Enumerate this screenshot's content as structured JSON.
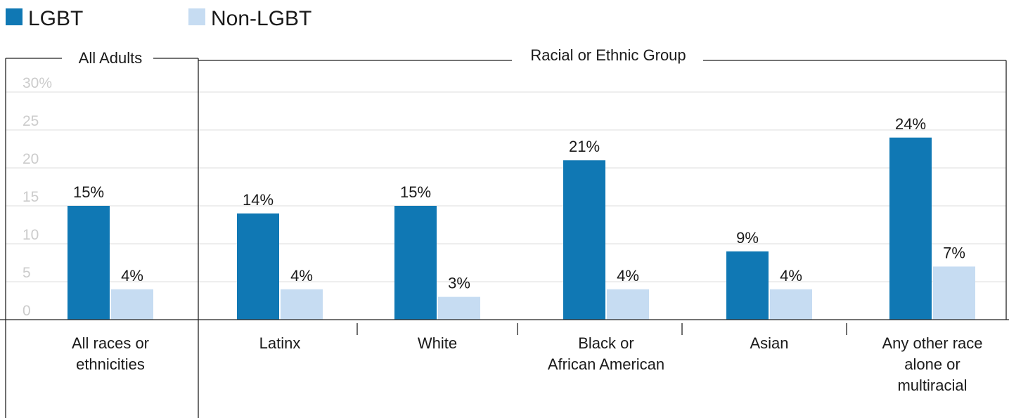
{
  "legend": {
    "lgbt": "LGBT",
    "non_lgbt": "Non-LGBT"
  },
  "groups": {
    "all_adults": "All Adults",
    "racial": "Racial or Ethnic Group"
  },
  "colors": {
    "lgbt": "#1078b4",
    "non_lgbt": "#c6dcf2",
    "grid": "#dddddd",
    "frame": "#222222"
  },
  "chart_data": {
    "type": "bar",
    "ylim": [
      0,
      30
    ],
    "yticks": [
      "0",
      "5",
      "10",
      "15",
      "20",
      "25",
      "30%"
    ],
    "grid": true,
    "legend_position": "top-left",
    "categories": [
      [
        "All races or",
        "ethnicities"
      ],
      [
        "Latinx"
      ],
      [
        "White"
      ],
      [
        "Black or",
        "African American"
      ],
      [
        "Asian"
      ],
      [
        "Any other race",
        "alone or",
        "multiracial"
      ]
    ],
    "series": [
      {
        "name": "LGBT",
        "values": [
          15,
          14,
          15,
          21,
          9,
          24
        ],
        "labels": [
          "15%",
          "14%",
          "15%",
          "21%",
          "9%",
          "24%"
        ]
      },
      {
        "name": "Non-LGBT",
        "values": [
          4,
          4,
          3,
          4,
          4,
          7
        ],
        "labels": [
          "4%",
          "4%",
          "3%",
          "4%",
          "4%",
          "7%"
        ]
      }
    ]
  }
}
